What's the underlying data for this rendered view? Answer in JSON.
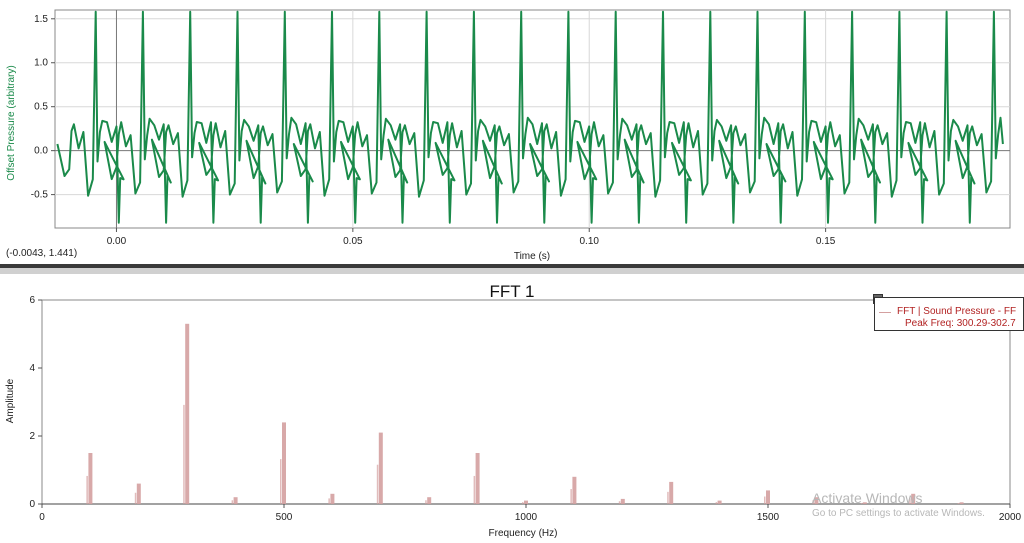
{
  "chart_data": [
    {
      "type": "line",
      "title": "",
      "xlabel": "Time (s)",
      "ylabel": "Offset Pressure (arbitrary)",
      "xlim": [
        -0.013,
        0.189
      ],
      "ylim": [
        -0.88,
        1.6
      ],
      "x_ticks": [
        "0.00",
        "0.05",
        "0.10",
        "0.15"
      ],
      "x_tick_values": [
        0,
        0.05,
        0.1,
        0.15
      ],
      "y_ticks": [
        "1.5",
        "1.0",
        "0.5",
        "0.0",
        "-0.5"
      ],
      "y_tick_values": [
        1.5,
        1.0,
        0.5,
        0.0,
        -0.5
      ],
      "grid": true,
      "color": "#1a8a4a",
      "coordinate_readout": "(-0.0043, 1.441)",
      "series": [
        {
          "period_s": 0.01,
          "x_start": -0.0125,
          "x_end": 0.1875,
          "peak_max": 1.58,
          "trough_min": -0.82,
          "x": [
            -0.0125,
            -0.011,
            -0.01,
            -0.0095,
            -0.009,
            -0.008,
            -0.007,
            -0.006,
            -0.005,
            -0.0044,
            -0.004,
            -0.0035,
            -0.003,
            -0.002,
            -0.001,
            0.0,
            0.0005,
            0.0008,
            0.0015
          ],
          "y": [
            0.1,
            -0.3,
            -0.2,
            0.2,
            0.3,
            0.05,
            0.2,
            -0.5,
            -0.35,
            1.58,
            -0.1,
            0.2,
            0.35,
            0.3,
            0.1,
            0.3,
            -0.82,
            -0.3,
            -0.35
          ]
        }
      ]
    },
    {
      "type": "bar",
      "title": "FFT 1",
      "xlabel": "Frequency (Hz)",
      "ylabel": "Amplitude",
      "xlim": [
        0,
        2000
      ],
      "ylim": [
        0,
        6
      ],
      "x_ticks": [
        "0",
        "500",
        "1000",
        "1500",
        "2000"
      ],
      "x_tick_values": [
        0,
        500,
        1000,
        1500,
        2000
      ],
      "y_ticks": [
        "6",
        "4",
        "2",
        "0"
      ],
      "y_tick_values": [
        6,
        4,
        2,
        0
      ],
      "grid": false,
      "color": "#d4a0a0",
      "legend": {
        "position": "top-right",
        "entry": "FFT | Sound Pressure - FF",
        "detail": "Peak Freq: 300.29-302.7"
      },
      "x": [
        100,
        200,
        300,
        400,
        500,
        600,
        700,
        800,
        900,
        1000,
        1100,
        1200,
        1300,
        1400,
        1500,
        1600,
        1700,
        1800,
        1900
      ],
      "values": [
        1.5,
        0.6,
        5.3,
        0.2,
        2.4,
        0.3,
        2.1,
        0.2,
        1.5,
        0.1,
        0.8,
        0.15,
        0.65,
        0.1,
        0.4,
        0.2,
        0.05,
        0.3,
        0.05
      ]
    }
  ],
  "watermark": {
    "line1": "Activate Windows",
    "line2": "Go to PC settings to activate Windows."
  }
}
